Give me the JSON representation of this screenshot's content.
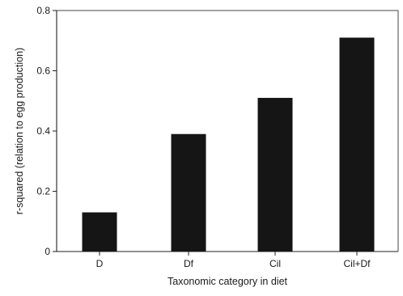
{
  "chart_data": {
    "type": "bar",
    "title": "",
    "xlabel": "Taxonomic category in diet",
    "ylabel": "r-squared (relation to egg production)",
    "categories": [
      "D",
      "Df",
      "Cil",
      "Cil+Df"
    ],
    "values": [
      0.13,
      0.39,
      0.51,
      0.71
    ],
    "ylim": [
      0,
      0.8
    ],
    "yticks": [
      0,
      0.2,
      0.4,
      0.6,
      0.8
    ],
    "ytick_labels": [
      "0",
      "0.2",
      "0.4",
      "0.6",
      "0.8"
    ],
    "grid": false,
    "legend": "none",
    "bar_color": "#151515"
  }
}
